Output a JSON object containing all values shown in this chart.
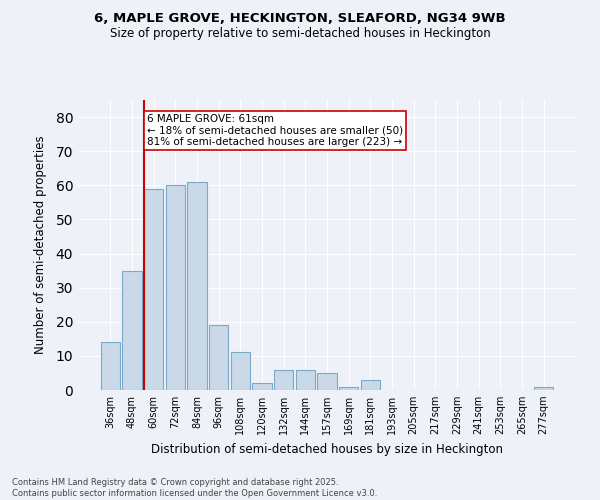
{
  "title_line1": "6, MAPLE GROVE, HECKINGTON, SLEAFORD, NG34 9WB",
  "title_line2": "Size of property relative to semi-detached houses in Heckington",
  "xlabel": "Distribution of semi-detached houses by size in Heckington",
  "ylabel": "Number of semi-detached properties",
  "categories": [
    "36sqm",
    "48sqm",
    "60sqm",
    "72sqm",
    "84sqm",
    "96sqm",
    "108sqm",
    "120sqm",
    "132sqm",
    "144sqm",
    "157sqm",
    "169sqm",
    "181sqm",
    "193sqm",
    "205sqm",
    "217sqm",
    "229sqm",
    "241sqm",
    "253sqm",
    "265sqm",
    "277sqm"
  ],
  "values": [
    14,
    35,
    59,
    60,
    61,
    19,
    11,
    2,
    6,
    6,
    5,
    1,
    3,
    0,
    0,
    0,
    0,
    0,
    0,
    0,
    1
  ],
  "bar_color": "#c9d9e8",
  "bar_edge_color": "#7aaac8",
  "background_color": "#eef2f8",
  "grid_color": "#ffffff",
  "vline_x_index": 2,
  "vline_color": "#cc0000",
  "annotation_text": "6 MAPLE GROVE: 61sqm\n← 18% of semi-detached houses are smaller (50)\n81% of semi-detached houses are larger (223) →",
  "annotation_box_color": "#ffffff",
  "annotation_box_edge_color": "#cc0000",
  "ylim": [
    0,
    85
  ],
  "yticks": [
    0,
    10,
    20,
    30,
    40,
    50,
    60,
    70,
    80
  ],
  "footer_line1": "Contains HM Land Registry data © Crown copyright and database right 2025.",
  "footer_line2": "Contains public sector information licensed under the Open Government Licence v3.0."
}
